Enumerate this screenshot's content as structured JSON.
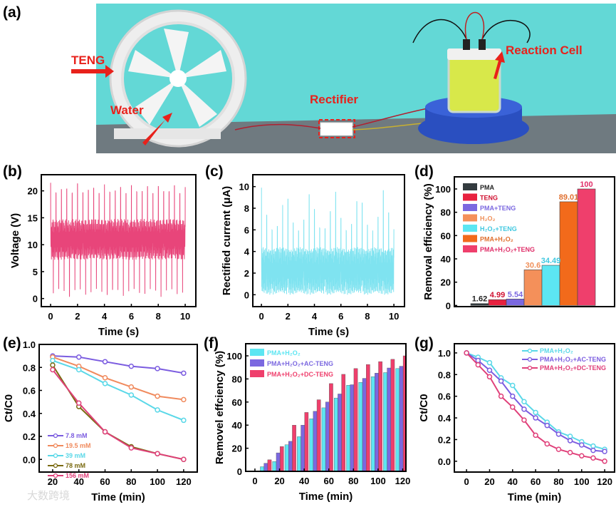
{
  "panel_labels": {
    "a": "(a)",
    "b": "(b)",
    "c": "(c)",
    "d": "(d)",
    "e": "(e)",
    "f": "(f)",
    "g": "(g)"
  },
  "photo": {
    "labels": {
      "teng": "TENG",
      "water": "Water",
      "rectifier": "Rectifier",
      "reaction_cell": "Reaction Cell"
    },
    "colors": {
      "background": "#63d8d6",
      "arrow": "#e8211b",
      "liquid": "#d8e84a",
      "stirrer": "#2a4fc0"
    }
  },
  "watermark": "大数跨境",
  "chart_data": [
    {
      "id": "b",
      "type": "line",
      "xlabel": "Time (s)",
      "ylabel": "Voltage (V)",
      "xlim": [
        0,
        10
      ],
      "ylim": [
        0,
        22
      ],
      "xticks": [
        "0",
        "2",
        "4",
        "6",
        "8",
        "10"
      ],
      "yticks": [
        "0",
        "5",
        "10",
        "15",
        "20"
      ],
      "series": [
        {
          "name": "Voltage",
          "color": "#e8457a",
          "peak_count": 25,
          "peak_max": 21.5,
          "trough_min": 0.3,
          "band": [
            8,
            14
          ]
        }
      ]
    },
    {
      "id": "c",
      "type": "line",
      "xlabel": "Time (s)",
      "ylabel": "Rectified current (μA)",
      "xlim": [
        0,
        10
      ],
      "ylim": [
        0,
        10
      ],
      "xticks": [
        "0",
        "2",
        "4",
        "6",
        "8",
        "10"
      ],
      "yticks": [
        "0",
        "2",
        "4",
        "6",
        "8",
        "10"
      ],
      "series": [
        {
          "name": "Rectified current",
          "color": "#7fe3f0",
          "peak_count": 25,
          "peak_max": 9.9,
          "band": [
            0,
            4.5
          ]
        }
      ]
    },
    {
      "id": "d",
      "type": "bar",
      "ylabel": "Removal efficiency (%)",
      "ylim": [
        0,
        110
      ],
      "yticks": [
        "0",
        "20",
        "40",
        "60",
        "80",
        "100"
      ],
      "categories": [
        "PMA",
        "TENG",
        "PMA+TENG",
        "H₂O₂",
        "H₂O₂+TENG",
        "PMA+H₂O₂",
        "PMA+H₂O₂+TENG"
      ],
      "values": [
        1.62,
        4.99,
        5.54,
        30.6,
        34.49,
        89.01,
        100
      ],
      "value_labels": [
        "1.62",
        "4.99",
        "5.54",
        "30.6",
        "34.49",
        "89.01",
        "100"
      ],
      "colors": [
        "#333b3f",
        "#e8213f",
        "#7b68e0",
        "#f4905a",
        "#5ce6f2",
        "#f26a1b",
        "#ef3f6c"
      ],
      "label_colors": [
        "#222222",
        "#d01030",
        "#7b68e0",
        "#f0905a",
        "#40c8e0",
        "#e07030",
        "#e0306a"
      ],
      "legend": "top-left"
    },
    {
      "id": "e",
      "type": "line",
      "xlabel": "Time (min)",
      "ylabel": "Ct/C0",
      "xlim": [
        10,
        130
      ],
      "ylim": [
        -0.1,
        1.0
      ],
      "xticks": [
        "20",
        "40",
        "60",
        "80",
        "100",
        "120"
      ],
      "yticks": [
        "0.0",
        "0.2",
        "0.4",
        "0.6",
        "0.8",
        "1.0"
      ],
      "x": [
        20,
        40,
        60,
        80,
        100,
        120
      ],
      "series": [
        {
          "name": "7.8 mM",
          "color": "#7b5ce0",
          "values": [
            0.9,
            0.89,
            0.85,
            0.81,
            0.79,
            0.75
          ]
        },
        {
          "name": "19.5 mM",
          "color": "#f08a5d",
          "values": [
            0.89,
            0.81,
            0.71,
            0.63,
            0.55,
            0.52
          ]
        },
        {
          "name": "39 mM",
          "color": "#5ad8e8",
          "values": [
            0.86,
            0.78,
            0.66,
            0.56,
            0.43,
            0.34
          ]
        },
        {
          "name": "78 mM",
          "color": "#7a6a10",
          "values": [
            0.82,
            0.46,
            0.24,
            0.11,
            0.05,
            0.0
          ]
        },
        {
          "name": "156 mM",
          "color": "#e0407a",
          "values": [
            0.78,
            0.49,
            0.24,
            0.1,
            0.05,
            0.0
          ]
        }
      ],
      "legend": "bottom-left"
    },
    {
      "id": "f",
      "type": "bar",
      "xlabel": "Time (min)",
      "ylabel": "Removel effciency (%)",
      "xlim": [
        0,
        120
      ],
      "ylim": [
        0,
        110
      ],
      "xticks": [
        "0",
        "20",
        "40",
        "60",
        "80",
        "100",
        "120"
      ],
      "yticks": [
        "0",
        "20",
        "40",
        "60",
        "80",
        "100"
      ],
      "x": [
        10,
        20,
        30,
        40,
        50,
        60,
        70,
        80,
        90,
        100,
        110,
        120
      ],
      "series": [
        {
          "name": "PMA+H₂O₂",
          "color": "#5ce6f2",
          "values": [
            4,
            8.5,
            23,
            30,
            45.5,
            55,
            63.5,
            74.5,
            77,
            82,
            85.5,
            89
          ]
        },
        {
          "name": "PMA+H₂O₂+AC-TENG",
          "color": "#7b68e0",
          "values": [
            7,
            16,
            26,
            40,
            52,
            60,
            67,
            75,
            80.5,
            85,
            89.5,
            91
          ]
        },
        {
          "name": "PMA+H₂O₂+DC-TENG",
          "color": "#ef3f6c",
          "values": [
            10,
            21.5,
            40,
            51,
            62,
            76,
            84,
            89,
            92.5,
            95,
            97,
            100
          ]
        }
      ],
      "legend": "top-left"
    },
    {
      "id": "g",
      "type": "line",
      "xlabel": "Time (min)",
      "ylabel": "Ct/C0",
      "xlim": [
        0,
        120
      ],
      "ylim": [
        -0.1,
        1.1
      ],
      "xticks": [
        "0",
        "20",
        "40",
        "60",
        "80",
        "100",
        "120"
      ],
      "yticks": [
        "0.0",
        "0.2",
        "0.4",
        "0.6",
        "0.8",
        "1.0"
      ],
      "x": [
        0,
        10,
        20,
        30,
        40,
        50,
        60,
        70,
        80,
        90,
        100,
        110,
        120
      ],
      "series": [
        {
          "name": "PMA+H₂O₂",
          "color": "#5ad8e8",
          "values": [
            1.0,
            0.96,
            0.91,
            0.77,
            0.7,
            0.55,
            0.45,
            0.36,
            0.27,
            0.23,
            0.18,
            0.14,
            0.11
          ]
        },
        {
          "name": "PMA+H₂O₂+AC-TENG",
          "color": "#7b5ce0",
          "values": [
            1.0,
            0.93,
            0.84,
            0.74,
            0.6,
            0.48,
            0.4,
            0.33,
            0.25,
            0.19,
            0.15,
            0.1,
            0.09
          ]
        },
        {
          "name": "PMA+H₂O₂+DC-TENG",
          "color": "#e0407a",
          "values": [
            1.0,
            0.89,
            0.78,
            0.6,
            0.5,
            0.38,
            0.24,
            0.16,
            0.11,
            0.08,
            0.05,
            0.03,
            0.0
          ]
        }
      ],
      "legend": "top-right"
    }
  ]
}
